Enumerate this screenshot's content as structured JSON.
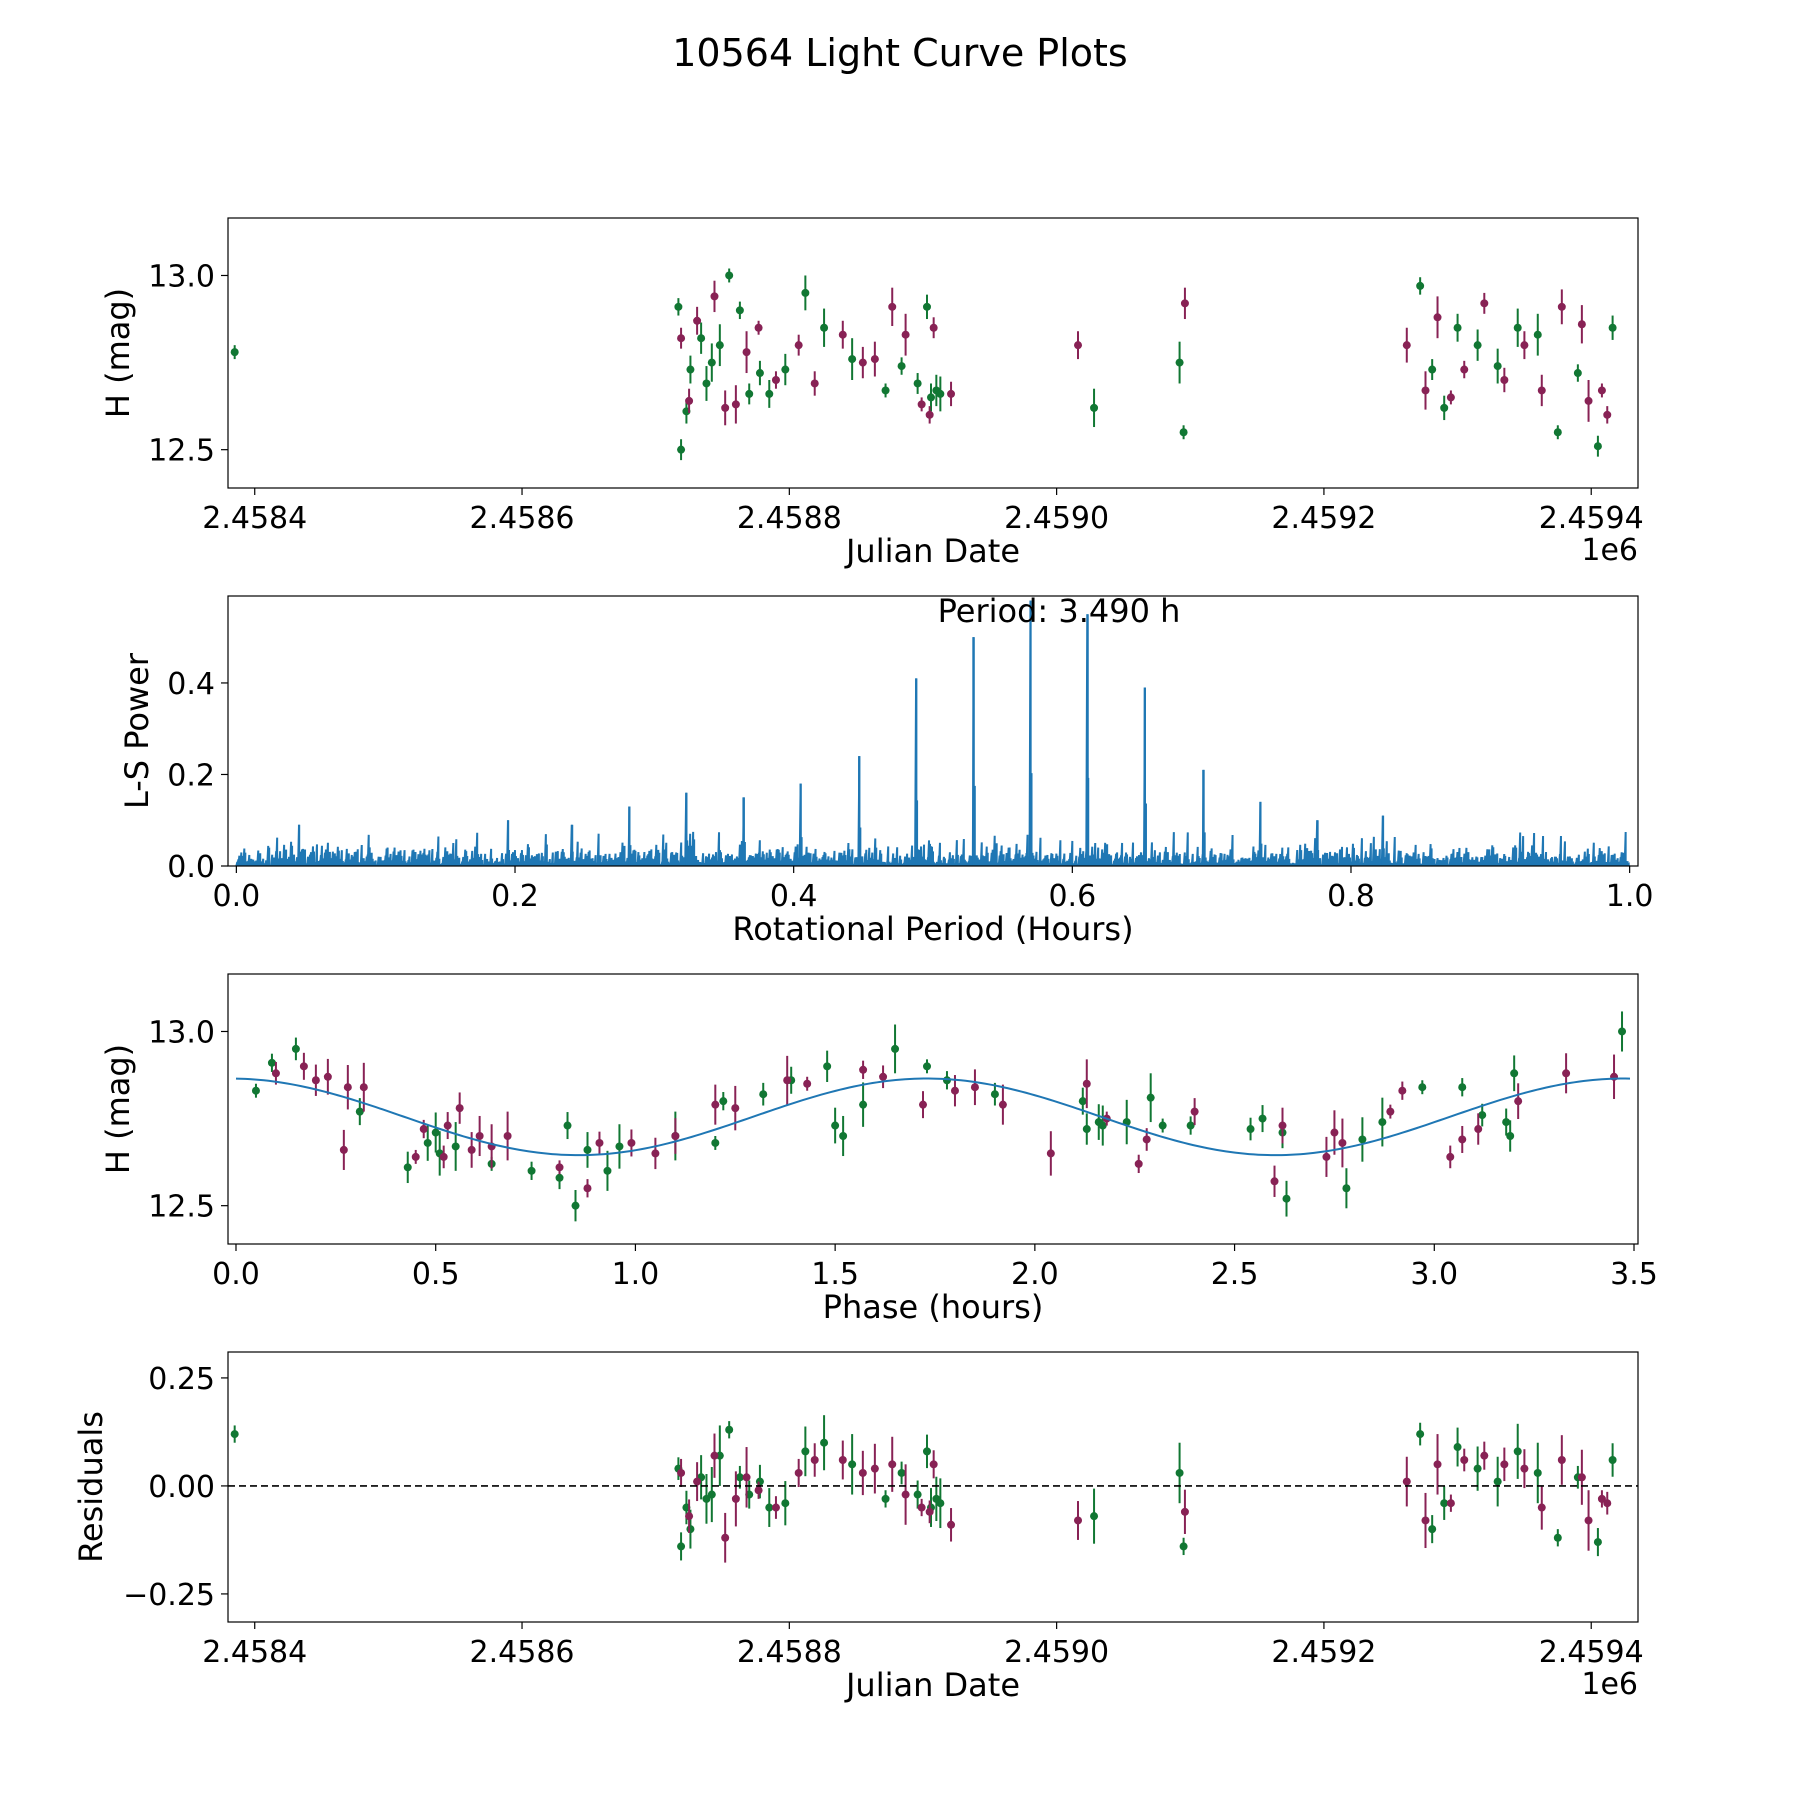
{
  "figure_title": "10564 Light Curve Plots",
  "colors": {
    "green": "#117733",
    "magenta": "#882255",
    "blue": "#1f77b4",
    "axis": "#000000"
  },
  "chart_data": [
    {
      "id": "lightcurve",
      "type": "scatter",
      "title": "",
      "xlabel": "Julian Date",
      "ylabel": "H (mag)",
      "x_offset_label": "1e6",
      "xlim": [
        2.45838,
        2.459435
      ],
      "ylim": [
        12.39,
        13.165
      ],
      "xticks": [
        2.4584,
        2.4586,
        2.4588,
        2.459,
        2.4592,
        2.4594
      ],
      "xtick_labels": [
        "2.4584",
        "2.4586",
        "2.4588",
        "2.4590",
        "2.4592",
        "2.4594"
      ],
      "yticks": [
        12.5,
        13.0
      ],
      "ytick_labels": [
        "12.5",
        "13.0"
      ],
      "series": [
        {
          "name": "green",
          "x": [
            2.458385,
            2.458717,
            2.458719,
            2.458723,
            2.458726,
            2.458734,
            2.458738,
            2.458742,
            2.458748,
            2.458755,
            2.458763,
            2.45877,
            2.458778,
            2.458785,
            2.458797,
            2.458812,
            2.458826,
            2.458847,
            2.458872,
            2.458884,
            2.458896,
            2.458903,
            2.458906,
            2.45891,
            2.458913,
            2.459028,
            2.459092,
            2.459095,
            2.459272,
            2.459281,
            2.45929,
            2.4593,
            2.459315,
            2.45933,
            2.459345,
            2.45936,
            2.459375,
            2.45939,
            2.459405,
            2.459416
          ],
          "y": [
            12.78,
            12.91,
            12.5,
            12.61,
            12.73,
            12.82,
            12.69,
            12.75,
            12.8,
            13.0,
            12.9,
            12.66,
            12.72,
            12.66,
            12.73,
            12.95,
            12.85,
            12.76,
            12.67,
            12.74,
            12.69,
            12.91,
            12.65,
            12.67,
            12.66,
            12.62,
            12.75,
            12.55,
            12.97,
            12.73,
            12.62,
            12.85,
            12.8,
            12.74,
            12.85,
            12.83,
            12.55,
            12.72,
            12.51,
            12.85
          ]
        },
        {
          "name": "magenta",
          "x": [
            2.458719,
            2.458725,
            2.458731,
            2.458744,
            2.458752,
            2.45876,
            2.458768,
            2.458777,
            2.45879,
            2.458807,
            2.458819,
            2.45884,
            2.458855,
            2.458864,
            2.458877,
            2.458887,
            2.458899,
            2.458905,
            2.458908,
            2.458921,
            2.459016,
            2.459096,
            2.459262,
            2.459276,
            2.459285,
            2.459295,
            2.459305,
            2.45932,
            2.459335,
            2.45935,
            2.459363,
            2.459378,
            2.459393,
            2.459398,
            2.459408,
            2.459412
          ],
          "y": [
            12.82,
            12.64,
            12.87,
            12.94,
            12.62,
            12.63,
            12.78,
            12.85,
            12.7,
            12.8,
            12.69,
            12.83,
            12.75,
            12.76,
            12.91,
            12.83,
            12.63,
            12.6,
            12.85,
            12.66,
            12.8,
            12.92,
            12.8,
            12.67,
            12.88,
            12.65,
            12.73,
            12.92,
            12.7,
            12.8,
            12.67,
            12.91,
            12.86,
            12.64,
            12.67,
            12.6
          ]
        }
      ]
    },
    {
      "id": "periodogram",
      "type": "line",
      "title": "",
      "annotation": "Period: 3.490 h",
      "xlabel": "Rotational Period (Hours)",
      "ylabel": "L-S Power",
      "xlim": [
        -0.006,
        1.006
      ],
      "ylim": [
        0,
        0.59
      ],
      "xticks": [
        0.0,
        0.2,
        0.4,
        0.6,
        0.8,
        1.0
      ],
      "xtick_labels": [
        "0.0",
        "0.2",
        "0.4",
        "0.6",
        "0.8",
        "1.0"
      ],
      "yticks": [
        0.0,
        0.2,
        0.4
      ],
      "ytick_labels": [
        "0.0",
        "0.2",
        "0.4"
      ],
      "noise_level": 0.045,
      "peaks": {
        "x": [
          0.045,
          0.195,
          0.241,
          0.282,
          0.323,
          0.364,
          0.405,
          0.447,
          0.488,
          0.529,
          0.57,
          0.611,
          0.652,
          0.694,
          0.735,
          0.776,
          0.823
        ],
        "y": [
          0.09,
          0.1,
          0.09,
          0.13,
          0.16,
          0.15,
          0.18,
          0.24,
          0.41,
          0.5,
          0.58,
          0.55,
          0.39,
          0.21,
          0.14,
          0.1,
          0.11
        ]
      }
    },
    {
      "id": "phased",
      "type": "scatter",
      "title": "",
      "xlabel": "Phase (hours)",
      "ylabel": "H (mag)",
      "xlim": [
        -0.02,
        3.51
      ],
      "ylim": [
        12.39,
        13.165
      ],
      "xticks": [
        0.0,
        0.5,
        1.0,
        1.5,
        2.0,
        2.5,
        3.0,
        3.5
      ],
      "xtick_labels": [
        "0.0",
        "0.5",
        "1.0",
        "1.5",
        "2.0",
        "2.5",
        "3.0",
        "3.5"
      ],
      "yticks": [
        12.5,
        13.0
      ],
      "ytick_labels": [
        "12.5",
        "13.0"
      ],
      "fit": {
        "mean": 12.755,
        "amplitude": 0.11,
        "period_hours": 1.745,
        "peak_phase": 1.73,
        "x_range": [
          0.0,
          3.49
        ]
      },
      "series": [
        {
          "name": "green",
          "x": [
            0.05,
            0.09,
            0.15,
            0.31,
            0.43,
            0.48,
            0.5,
            0.51,
            0.55,
            0.64,
            0.74,
            0.81,
            0.83,
            0.85,
            0.88,
            0.93,
            0.96,
            1.1,
            1.2,
            1.22,
            1.32,
            1.39,
            1.48,
            1.5,
            1.52,
            1.57,
            1.65,
            1.73,
            1.78,
            1.9,
            2.12,
            2.13,
            2.16,
            2.17,
            2.23,
            2.29,
            2.32,
            2.39,
            2.54,
            2.57,
            2.62,
            2.63,
            2.78,
            2.82,
            2.87,
            2.97,
            3.07,
            3.12,
            3.18,
            3.19,
            3.2,
            3.47
          ],
          "y": [
            12.83,
            12.91,
            12.95,
            12.77,
            12.61,
            12.68,
            12.71,
            12.65,
            12.67,
            12.62,
            12.6,
            12.58,
            12.73,
            12.5,
            12.66,
            12.6,
            12.67,
            12.7,
            12.68,
            12.8,
            12.82,
            12.86,
            12.9,
            12.73,
            12.7,
            12.79,
            12.95,
            12.9,
            12.86,
            12.82,
            12.8,
            12.72,
            12.74,
            12.73,
            12.74,
            12.81,
            12.73,
            12.73,
            12.72,
            12.75,
            12.71,
            12.52,
            12.55,
            12.69,
            12.74,
            12.84,
            12.84,
            12.76,
            12.74,
            12.7,
            12.88,
            13.0
          ]
        },
        {
          "name": "magenta",
          "x": [
            0.1,
            0.17,
            0.2,
            0.23,
            0.27,
            0.28,
            0.32,
            0.45,
            0.47,
            0.52,
            0.53,
            0.56,
            0.59,
            0.61,
            0.64,
            0.68,
            0.81,
            0.88,
            0.91,
            0.99,
            1.05,
            1.1,
            1.2,
            1.25,
            1.38,
            1.43,
            1.57,
            1.62,
            1.72,
            1.8,
            1.85,
            1.92,
            2.04,
            2.13,
            2.18,
            2.26,
            2.28,
            2.4,
            2.6,
            2.62,
            2.73,
            2.75,
            2.77,
            2.89,
            2.92,
            3.04,
            3.07,
            3.11,
            3.21,
            3.33,
            3.45
          ],
          "y": [
            12.88,
            12.9,
            12.86,
            12.87,
            12.66,
            12.84,
            12.84,
            12.64,
            12.72,
            12.64,
            12.73,
            12.78,
            12.66,
            12.7,
            12.67,
            12.7,
            12.61,
            12.55,
            12.68,
            12.68,
            12.65,
            12.7,
            12.79,
            12.78,
            12.86,
            12.85,
            12.89,
            12.87,
            12.79,
            12.83,
            12.84,
            12.79,
            12.65,
            12.85,
            12.75,
            12.62,
            12.69,
            12.77,
            12.57,
            12.73,
            12.64,
            12.71,
            12.68,
            12.77,
            12.83,
            12.64,
            12.69,
            12.72,
            12.8,
            12.88,
            12.87
          ]
        }
      ]
    },
    {
      "id": "residuals",
      "type": "scatter",
      "title": "",
      "xlabel": "Julian Date",
      "ylabel": "Residuals",
      "x_offset_label": "1e6",
      "xlim": [
        2.45838,
        2.459435
      ],
      "ylim": [
        -0.315,
        0.31
      ],
      "xticks": [
        2.4584,
        2.4586,
        2.4588,
        2.459,
        2.4592,
        2.4594
      ],
      "xtick_labels": [
        "2.4584",
        "2.4586",
        "2.4588",
        "2.4590",
        "2.4592",
        "2.4594"
      ],
      "yticks": [
        -0.25,
        0.0,
        0.25
      ],
      "ytick_labels": [
        "−0.25",
        "0.00",
        "0.25"
      ],
      "reference_line": 0.0,
      "series": [
        {
          "name": "green",
          "x": [
            2.458385,
            2.458717,
            2.458719,
            2.458723,
            2.458726,
            2.458734,
            2.458738,
            2.458742,
            2.458748,
            2.458755,
            2.458763,
            2.45877,
            2.458778,
            2.458785,
            2.458797,
            2.458812,
            2.458826,
            2.458847,
            2.458872,
            2.458884,
            2.458896,
            2.458903,
            2.458906,
            2.45891,
            2.458913,
            2.459028,
            2.459092,
            2.459095,
            2.459272,
            2.459281,
            2.45929,
            2.4593,
            2.459315,
            2.45933,
            2.459345,
            2.45936,
            2.459375,
            2.45939,
            2.459405,
            2.459416
          ],
          "y": [
            0.12,
            0.04,
            -0.14,
            -0.05,
            -0.1,
            0.02,
            -0.03,
            -0.02,
            0.07,
            0.13,
            0.02,
            -0.02,
            0.01,
            -0.05,
            -0.04,
            0.08,
            0.1,
            0.05,
            -0.03,
            0.03,
            -0.02,
            0.08,
            -0.05,
            -0.03,
            -0.04,
            -0.07,
            0.03,
            -0.14,
            0.12,
            -0.1,
            -0.04,
            0.09,
            0.04,
            0.01,
            0.08,
            0.03,
            -0.12,
            0.02,
            -0.13,
            0.06
          ]
        },
        {
          "name": "magenta",
          "x": [
            2.458719,
            2.458725,
            2.458731,
            2.458744,
            2.458752,
            2.45876,
            2.458768,
            2.458777,
            2.45879,
            2.458807,
            2.458819,
            2.45884,
            2.458855,
            2.458864,
            2.458877,
            2.458887,
            2.458899,
            2.458905,
            2.458908,
            2.458921,
            2.459016,
            2.459096,
            2.459262,
            2.459276,
            2.459285,
            2.459295,
            2.459305,
            2.45932,
            2.459335,
            2.45935,
            2.459363,
            2.459378,
            2.459393,
            2.459398,
            2.459408,
            2.459412
          ],
          "y": [
            0.03,
            -0.07,
            0.01,
            0.07,
            -0.12,
            -0.03,
            0.02,
            -0.01,
            -0.05,
            0.03,
            0.06,
            0.06,
            0.03,
            0.04,
            0.05,
            -0.02,
            -0.05,
            -0.06,
            0.05,
            -0.09,
            -0.08,
            -0.06,
            0.01,
            -0.08,
            0.05,
            -0.04,
            0.06,
            0.07,
            0.05,
            0.04,
            -0.05,
            0.06,
            0.02,
            -0.08,
            -0.03,
            -0.04
          ]
        }
      ]
    }
  ]
}
